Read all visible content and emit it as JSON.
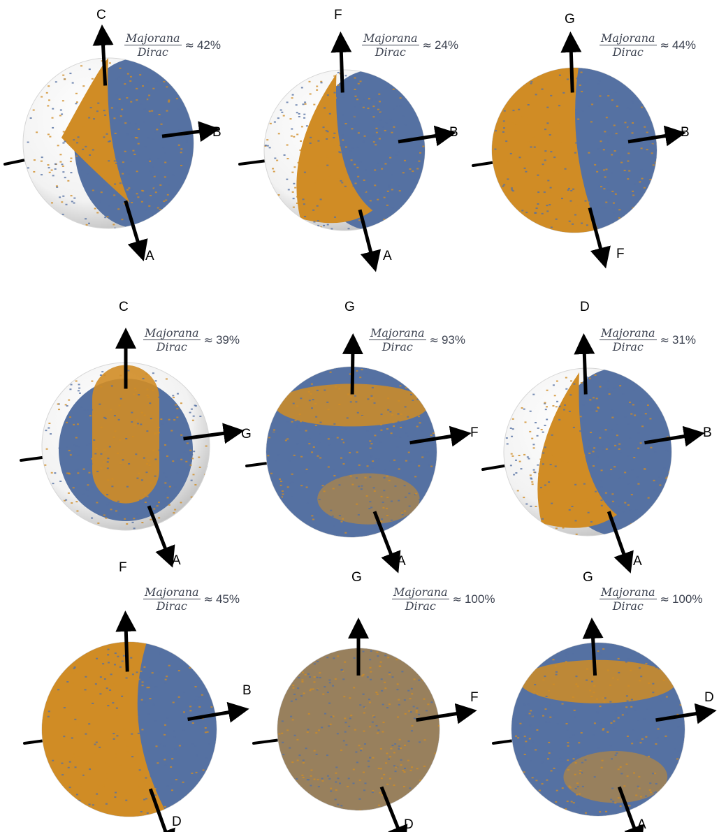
{
  "colors": {
    "majorana": "#d08c25",
    "dirac": "#5571a2",
    "sphere_shell": "#e4e4e4",
    "axis": "#000000",
    "ratio_text": "#3c4250"
  },
  "ratio_fraction": {
    "numerator": "Majorana",
    "denominator": "Dirac",
    "approx_symbol": "≈"
  },
  "panels": [
    {
      "row": 1,
      "col": 1,
      "top_axis": "C",
      "right_axis": "B",
      "bottom_axis": "A",
      "ratio_value": "42%",
      "majorana_share": 0.42
    },
    {
      "row": 1,
      "col": 2,
      "top_axis": "F",
      "right_axis": "B",
      "bottom_axis": "A",
      "ratio_value": "24%",
      "majorana_share": 0.24
    },
    {
      "row": 1,
      "col": 3,
      "top_axis": "G",
      "right_axis": "B",
      "bottom_axis": "F",
      "ratio_value": "44%",
      "majorana_share": 0.44
    },
    {
      "row": 2,
      "col": 1,
      "top_axis": "C",
      "right_axis": "G",
      "bottom_axis": "A",
      "ratio_value": "39%",
      "majorana_share": 0.39
    },
    {
      "row": 2,
      "col": 2,
      "top_axis": "G",
      "right_axis": "F",
      "bottom_axis": "A",
      "ratio_value": "93%",
      "majorana_share": 0.93
    },
    {
      "row": 2,
      "col": 3,
      "top_axis": "D",
      "right_axis": "B",
      "bottom_axis": "A",
      "ratio_value": "31%",
      "majorana_share": 0.31
    },
    {
      "row": 3,
      "col": 1,
      "top_axis": "F",
      "right_axis": "B",
      "bottom_axis": "D",
      "ratio_value": "45%",
      "majorana_share": 0.45
    },
    {
      "row": 3,
      "col": 2,
      "top_axis": "G",
      "right_axis": "F",
      "bottom_axis": "D",
      "ratio_value": "100%",
      "majorana_share": 1.0
    },
    {
      "row": 3,
      "col": 3,
      "top_axis": "G",
      "right_axis": "D",
      "bottom_axis": "A",
      "ratio_value": "100%",
      "majorana_share": 1.0
    }
  ]
}
